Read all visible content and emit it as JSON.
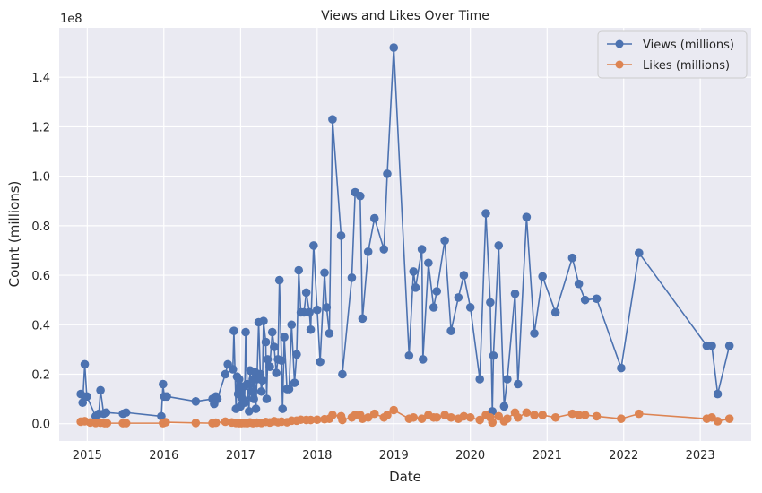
{
  "chart_data": {
    "type": "line",
    "title": "Views and Likes Over Time",
    "xlabel": "Date",
    "ylabel": "Count (millions)",
    "y_offset_label": "1e8",
    "xlim": [
      "2014-08-20",
      "2023-09-01"
    ],
    "ylim": [
      -0.07,
      1.6
    ],
    "y_scale_factor": 100000000,
    "x_ticks": [
      "2015-01-01",
      "2016-01-01",
      "2017-01-01",
      "2018-01-01",
      "2019-01-01",
      "2020-01-01",
      "2021-01-01",
      "2022-01-01",
      "2023-01-01"
    ],
    "x_tick_labels": [
      "2015",
      "2016",
      "2017",
      "2018",
      "2019",
      "2020",
      "2021",
      "2022",
      "2023"
    ],
    "y_ticks": [
      0.0,
      0.2,
      0.4,
      0.6,
      0.8,
      1.0,
      1.2,
      1.4
    ],
    "y_tick_labels": [
      "0.0",
      "0.2",
      "0.4",
      "0.6",
      "0.8",
      "1.0",
      "1.2",
      "1.4"
    ],
    "grid": true,
    "legend_position": "top-right",
    "colors": {
      "views": "#4c72b0",
      "likes": "#dd8452",
      "plot_bg": "#eaeaf2",
      "grid": "#ffffff"
    },
    "series": [
      {
        "name": "Views (millions)",
        "color": "#4c72b0",
        "points": [
          [
            "2014-12-01",
            0.12
          ],
          [
            "2014-12-10",
            0.085
          ],
          [
            "2014-12-20",
            0.24
          ],
          [
            "2014-12-30",
            0.11
          ],
          [
            "2015-02-10",
            0.03
          ],
          [
            "2015-02-25",
            0.04
          ],
          [
            "2015-03-05",
            0.135
          ],
          [
            "2015-03-20",
            0.04
          ],
          [
            "2015-04-01",
            0.045
          ],
          [
            "2015-06-20",
            0.04
          ],
          [
            "2015-07-05",
            0.045
          ],
          [
            "2015-12-20",
            0.03
          ],
          [
            "2015-12-28",
            0.16
          ],
          [
            "2016-01-03",
            0.11
          ],
          [
            "2016-01-15",
            0.11
          ],
          [
            "2016-06-01",
            0.09
          ],
          [
            "2016-08-20",
            0.1
          ],
          [
            "2016-08-28",
            0.08
          ],
          [
            "2016-09-05",
            0.11
          ],
          [
            "2016-09-12",
            0.1
          ],
          [
            "2016-10-20",
            0.2
          ],
          [
            "2016-11-01",
            0.24
          ],
          [
            "2016-11-25",
            0.22
          ],
          [
            "2016-11-30",
            0.375
          ],
          [
            "2016-12-10",
            0.06
          ],
          [
            "2016-12-15",
            0.19
          ],
          [
            "2016-12-20",
            0.12
          ],
          [
            "2016-12-25",
            0.18
          ],
          [
            "2016-12-31",
            0.07
          ],
          [
            "2017-01-05",
            0.15
          ],
          [
            "2017-01-10",
            0.1
          ],
          [
            "2017-01-15",
            0.15
          ],
          [
            "2017-01-20",
            0.085
          ],
          [
            "2017-01-25",
            0.37
          ],
          [
            "2017-02-01",
            0.16
          ],
          [
            "2017-02-10",
            0.05
          ],
          [
            "2017-02-15",
            0.215
          ],
          [
            "2017-02-20",
            0.13
          ],
          [
            "2017-02-28",
            0.18
          ],
          [
            "2017-03-05",
            0.1
          ],
          [
            "2017-03-10",
            0.21
          ],
          [
            "2017-03-15",
            0.06
          ],
          [
            "2017-03-20",
            0.18
          ],
          [
            "2017-03-28",
            0.41
          ],
          [
            "2017-04-05",
            0.2
          ],
          [
            "2017-04-10",
            0.13
          ],
          [
            "2017-04-15",
            0.175
          ],
          [
            "2017-04-20",
            0.415
          ],
          [
            "2017-05-01",
            0.33
          ],
          [
            "2017-05-05",
            0.1
          ],
          [
            "2017-05-10",
            0.26
          ],
          [
            "2017-05-20",
            0.23
          ],
          [
            "2017-06-01",
            0.37
          ],
          [
            "2017-06-10",
            0.31
          ],
          [
            "2017-06-20",
            0.205
          ],
          [
            "2017-06-28",
            0.26
          ],
          [
            "2017-07-05",
            0.58
          ],
          [
            "2017-07-15",
            0.255
          ],
          [
            "2017-07-20",
            0.06
          ],
          [
            "2017-07-28",
            0.35
          ],
          [
            "2017-08-10",
            0.14
          ],
          [
            "2017-08-20",
            0.14
          ],
          [
            "2017-09-01",
            0.4
          ],
          [
            "2017-09-15",
            0.165
          ],
          [
            "2017-09-25",
            0.28
          ],
          [
            "2017-10-05",
            0.62
          ],
          [
            "2017-10-15",
            0.45
          ],
          [
            "2017-10-30",
            0.45
          ],
          [
            "2017-11-10",
            0.53
          ],
          [
            "2017-11-25",
            0.45
          ],
          [
            "2017-12-01",
            0.38
          ],
          [
            "2017-12-15",
            0.72
          ],
          [
            "2018-01-01",
            0.46
          ],
          [
            "2018-01-15",
            0.25
          ],
          [
            "2018-02-05",
            0.61
          ],
          [
            "2018-02-15",
            0.47
          ],
          [
            "2018-02-28",
            0.365
          ],
          [
            "2018-03-15",
            1.23
          ],
          [
            "2018-04-25",
            0.76
          ],
          [
            "2018-05-01",
            0.2
          ],
          [
            "2018-06-15",
            0.59
          ],
          [
            "2018-07-01",
            0.935
          ],
          [
            "2018-07-25",
            0.92
          ],
          [
            "2018-08-05",
            0.425
          ],
          [
            "2018-09-01",
            0.695
          ],
          [
            "2018-10-01",
            0.83
          ],
          [
            "2018-11-15",
            0.705
          ],
          [
            "2018-12-01",
            1.01
          ],
          [
            "2019-01-01",
            1.52
          ],
          [
            "2019-03-15",
            0.275
          ],
          [
            "2019-04-05",
            0.615
          ],
          [
            "2019-04-15",
            0.55
          ],
          [
            "2019-05-15",
            0.705
          ],
          [
            "2019-05-20",
            0.26
          ],
          [
            "2019-06-15",
            0.65
          ],
          [
            "2019-07-10",
            0.47
          ],
          [
            "2019-07-25",
            0.535
          ],
          [
            "2019-09-01",
            0.74
          ],
          [
            "2019-10-01",
            0.375
          ],
          [
            "2019-11-05",
            0.51
          ],
          [
            "2019-12-01",
            0.6
          ],
          [
            "2020-01-01",
            0.47
          ],
          [
            "2020-02-15",
            0.18
          ],
          [
            "2020-03-15",
            0.85
          ],
          [
            "2020-04-05",
            0.49
          ],
          [
            "2020-04-15",
            0.05
          ],
          [
            "2020-04-20",
            0.275
          ],
          [
            "2020-05-15",
            0.72
          ],
          [
            "2020-06-10",
            0.07
          ],
          [
            "2020-06-25",
            0.18
          ],
          [
            "2020-08-01",
            0.525
          ],
          [
            "2020-08-15",
            0.16
          ],
          [
            "2020-09-25",
            0.835
          ],
          [
            "2020-11-01",
            0.365
          ],
          [
            "2020-12-10",
            0.595
          ],
          [
            "2021-02-10",
            0.45
          ],
          [
            "2021-05-01",
            0.67
          ],
          [
            "2021-06-01",
            0.565
          ],
          [
            "2021-07-01",
            0.5
          ],
          [
            "2021-08-25",
            0.505
          ],
          [
            "2021-12-20",
            0.225
          ],
          [
            "2022-03-15",
            0.69
          ],
          [
            "2023-02-01",
            0.315
          ],
          [
            "2023-02-25",
            0.315
          ],
          [
            "2023-03-25",
            0.12
          ],
          [
            "2023-05-20",
            0.315
          ]
        ]
      },
      {
        "name": "Likes (millions)",
        "color": "#dd8452",
        "points": [
          [
            "2014-12-01",
            0.008
          ],
          [
            "2014-12-20",
            0.01
          ],
          [
            "2015-01-15",
            0.005
          ],
          [
            "2015-02-10",
            0.003
          ],
          [
            "2015-03-05",
            0.004
          ],
          [
            "2015-03-25",
            0.002
          ],
          [
            "2015-04-05",
            0.002
          ],
          [
            "2015-06-20",
            0.002
          ],
          [
            "2015-07-05",
            0.002
          ],
          [
            "2015-12-28",
            0.002
          ],
          [
            "2016-01-10",
            0.006
          ],
          [
            "2016-06-01",
            0.003
          ],
          [
            "2016-08-20",
            0.002
          ],
          [
            "2016-09-05",
            0.004
          ],
          [
            "2016-10-20",
            0.008
          ],
          [
            "2016-11-20",
            0.005
          ],
          [
            "2016-12-10",
            0.003
          ],
          [
            "2016-12-25",
            0.002
          ],
          [
            "2017-01-05",
            0.002
          ],
          [
            "2017-01-20",
            0.003
          ],
          [
            "2017-02-01",
            0.002
          ],
          [
            "2017-02-15",
            0.005
          ],
          [
            "2017-03-01",
            0.002
          ],
          [
            "2017-03-20",
            0.004
          ],
          [
            "2017-04-10",
            0.003
          ],
          [
            "2017-05-01",
            0.007
          ],
          [
            "2017-05-20",
            0.005
          ],
          [
            "2017-06-10",
            0.01
          ],
          [
            "2017-06-28",
            0.006
          ],
          [
            "2017-07-15",
            0.008
          ],
          [
            "2017-08-10",
            0.006
          ],
          [
            "2017-09-01",
            0.012
          ],
          [
            "2017-09-25",
            0.012
          ],
          [
            "2017-10-15",
            0.016
          ],
          [
            "2017-11-10",
            0.015
          ],
          [
            "2017-12-01",
            0.015
          ],
          [
            "2018-01-01",
            0.016
          ],
          [
            "2018-02-05",
            0.018
          ],
          [
            "2018-02-28",
            0.02
          ],
          [
            "2018-03-15",
            0.035
          ],
          [
            "2018-04-25",
            0.03
          ],
          [
            "2018-05-01",
            0.015
          ],
          [
            "2018-06-15",
            0.025
          ],
          [
            "2018-07-01",
            0.035
          ],
          [
            "2018-07-25",
            0.035
          ],
          [
            "2018-08-05",
            0.02
          ],
          [
            "2018-09-01",
            0.025
          ],
          [
            "2018-10-01",
            0.04
          ],
          [
            "2018-11-15",
            0.025
          ],
          [
            "2018-12-01",
            0.035
          ],
          [
            "2019-01-01",
            0.055
          ],
          [
            "2019-03-15",
            0.02
          ],
          [
            "2019-04-05",
            0.025
          ],
          [
            "2019-05-15",
            0.02
          ],
          [
            "2019-06-15",
            0.035
          ],
          [
            "2019-07-10",
            0.025
          ],
          [
            "2019-07-25",
            0.025
          ],
          [
            "2019-09-01",
            0.035
          ],
          [
            "2019-10-01",
            0.025
          ],
          [
            "2019-11-05",
            0.02
          ],
          [
            "2019-12-01",
            0.03
          ],
          [
            "2020-01-01",
            0.025
          ],
          [
            "2020-02-15",
            0.015
          ],
          [
            "2020-03-15",
            0.035
          ],
          [
            "2020-04-05",
            0.025
          ],
          [
            "2020-04-15",
            0.005
          ],
          [
            "2020-05-15",
            0.03
          ],
          [
            "2020-06-10",
            0.01
          ],
          [
            "2020-06-25",
            0.02
          ],
          [
            "2020-08-01",
            0.045
          ],
          [
            "2020-08-15",
            0.025
          ],
          [
            "2020-09-25",
            0.045
          ],
          [
            "2020-11-01",
            0.035
          ],
          [
            "2020-12-10",
            0.035
          ],
          [
            "2021-02-10",
            0.025
          ],
          [
            "2021-05-01",
            0.04
          ],
          [
            "2021-06-01",
            0.035
          ],
          [
            "2021-07-01",
            0.035
          ],
          [
            "2021-08-25",
            0.03
          ],
          [
            "2021-12-20",
            0.02
          ],
          [
            "2022-03-15",
            0.04
          ],
          [
            "2023-02-01",
            0.02
          ],
          [
            "2023-02-25",
            0.025
          ],
          [
            "2023-03-25",
            0.01
          ],
          [
            "2023-05-20",
            0.02
          ]
        ]
      }
    ]
  }
}
